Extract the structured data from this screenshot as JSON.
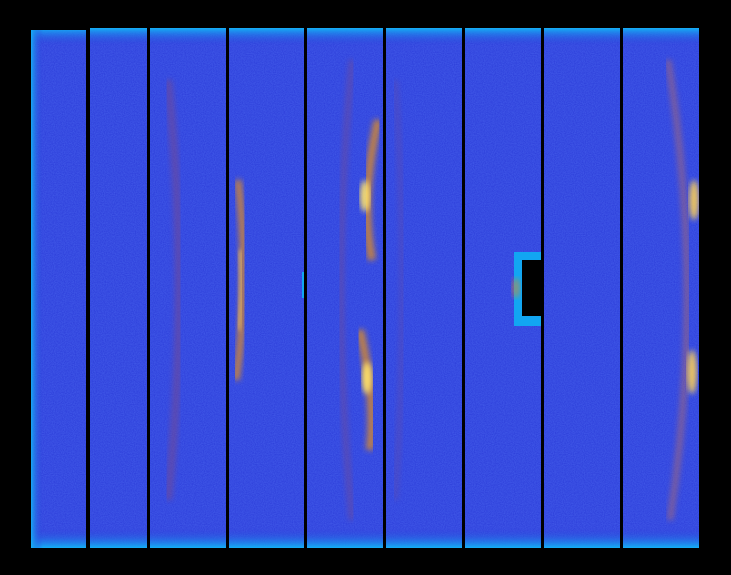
{
  "image": {
    "kind": "x-ray diffraction detector frame (false color)",
    "panel_count": 9,
    "colors": {
      "background": "#000000",
      "panel_base": "#2a3ad8",
      "panel_dark": "#1020b8",
      "panel_edge": "#12a6f2",
      "gap": "#000000",
      "ring_faint": "#7a4a8a",
      "ring_orange": "#d88a2a",
      "ring_hot": "#ffe36a"
    },
    "features": [
      "vertical-panel-gaps",
      "diffraction-arcs",
      "beamstop-shadow"
    ]
  }
}
